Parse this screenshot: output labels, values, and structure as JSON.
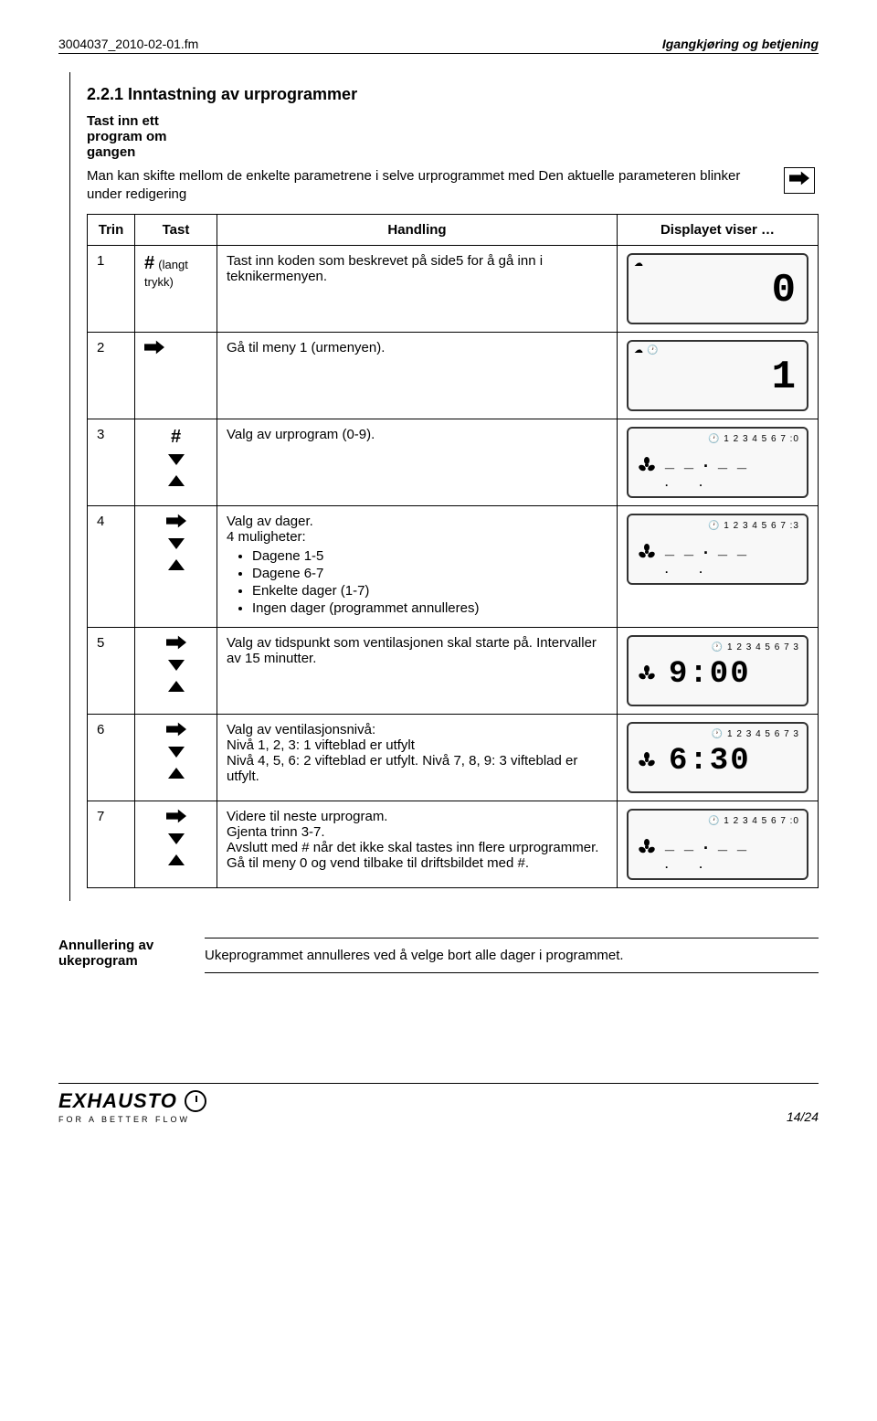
{
  "header": {
    "left": "3004037_2010-02-01.fm",
    "right": "Igangkjøring og betjening"
  },
  "section": {
    "number_title": "2.2.1  Inntastning av urprogrammer",
    "sub_label1": "Tast inn ett",
    "sub_label2": "program om",
    "sub_label3": "gangen",
    "intro": "Man kan skifte mellom de enkelte parametrene i selve urprogrammet med Den aktuelle parameteren blinker under redigering"
  },
  "table": {
    "head_trin": "Trin",
    "head_tast": "Tast",
    "head_handling": "Handling",
    "head_display": "Displayet viser …",
    "rows": [
      {
        "trin": "1",
        "tast_hash": "#",
        "tast_note": "(langt trykk)",
        "handling": "Tast inn koden som beskrevet på side5 for å gå inn i teknikermenyen.",
        "display_digit": "0",
        "lcd_type": "digit"
      },
      {
        "trin": "2",
        "handling": "Gå til meny 1 (urmenyen).",
        "display_digit": "1",
        "lcd_type": "digit_clock"
      },
      {
        "trin": "3",
        "tast_hash": "#",
        "handling": "Valg av urprogram (0-9).",
        "lcd_type": "dashes",
        "top_nums": "1 2 3 4 5 6 7 :0"
      },
      {
        "trin": "4",
        "handling_title": "Valg av dager.",
        "handling_sub": "4 muligheter:",
        "bullets": [
          "Dagene 1-5",
          "Dagene 6-7",
          "Enkelte dager (1-7)",
          "Ingen dager (programmet annulleres)"
        ],
        "lcd_type": "dashes",
        "top_nums": "1 2 3 4 5 6 7 :3"
      },
      {
        "trin": "5",
        "handling": "Valg av tidspunkt som ventilasjonen skal starte på. Intervaller av 15 minutter.",
        "lcd_type": "time",
        "time": "9:00",
        "top_nums": "1 2 3 4 5 6 7  3"
      },
      {
        "trin": "6",
        "handling": "Valg av ventilasjonsnivå:\nNivå 1, 2, 3: 1 vifteblad er utfylt\nNivå 4, 5, 6: 2 vifteblad er utfylt. Nivå 7, 8, 9: 3 vifteblad er utfylt.",
        "lcd_type": "time",
        "time": "6:30",
        "top_nums": "1 2 3 4 5 6 7  3"
      },
      {
        "trin": "7",
        "handling": "Videre til neste urprogram.\nGjenta trinn 3-7.\nAvslutt med # når det ikke skal tastes inn flere urprogrammer.\nGå til meny 0 og vend tilbake til driftsbildet med #.",
        "lcd_type": "dashes",
        "top_nums": "1 2 3 4 5 6 7 :0"
      }
    ]
  },
  "footer_block": {
    "label1": "Annullering av",
    "label2": "ukeprogram",
    "text": "Ukeprogrammet annulleres ved å velge bort alle dager i programmet."
  },
  "page_footer": {
    "logo_text": "EXHAUSTO",
    "logo_sub": "FOR A BETTER FLOW",
    "pagenum": "14/24"
  }
}
